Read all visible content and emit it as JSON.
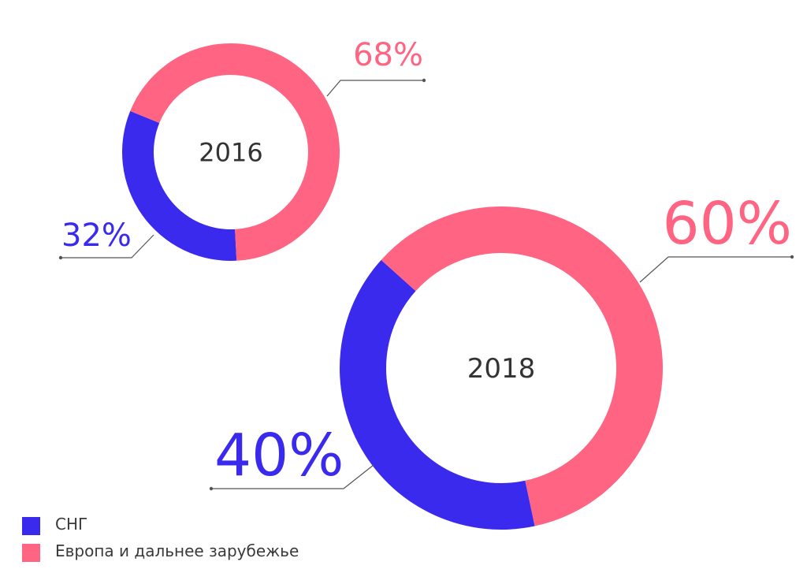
{
  "colors": {
    "cis": "#3a2aee",
    "europe": "#ff6482",
    "line": "#555555",
    "text": "#333333"
  },
  "legend": [
    {
      "label": "СНГ",
      "color": "#3a2aee"
    },
    {
      "label": "Европа и дальнее зарубежье",
      "color": "#ff6482"
    }
  ],
  "chart_data": [
    {
      "type": "pie",
      "title": "2016",
      "donut": true,
      "categories": [
        "СНГ",
        "Европа и дальнее зарубежье"
      ],
      "values": [
        32,
        68
      ],
      "labels": [
        "32%",
        "68%"
      ]
    },
    {
      "type": "pie",
      "title": "2018",
      "donut": true,
      "categories": [
        "СНГ",
        "Европа и дальнее зарубежье"
      ],
      "values": [
        40,
        60
      ],
      "labels": [
        "40%",
        "60%"
      ]
    }
  ]
}
